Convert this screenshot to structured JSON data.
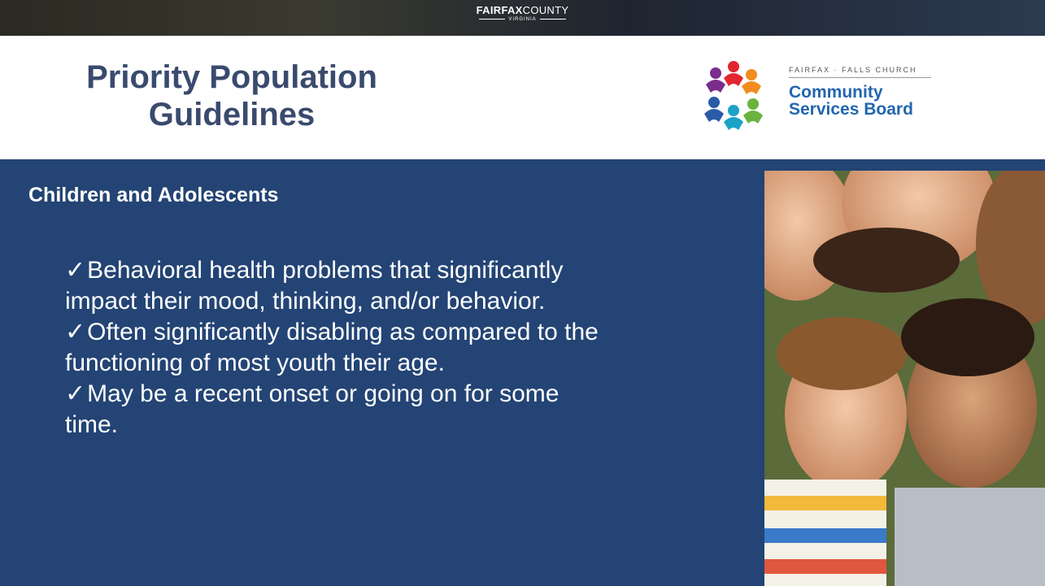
{
  "top_bar": {
    "brand_bold": "FAIRFAX",
    "brand_light": "COUNTY",
    "state": "VIRGINIA"
  },
  "header": {
    "title_lines": [
      "Priority Population",
      "Guidelines"
    ],
    "logo": {
      "tagline": "FAIRFAX · FALLS CHURCH",
      "name_lines": [
        "Community",
        "Services Board"
      ]
    }
  },
  "body": {
    "heading": "Children and Adolescents",
    "bullets": [
      [
        "Behavioral health problems that significantly",
        "impact their mood, thinking, and/or behavior."
      ],
      [
        "Often significantly disabling as compared to the",
        "functioning of most youth their age."
      ],
      [
        "May be a recent onset or going on for some",
        "time."
      ]
    ]
  }
}
